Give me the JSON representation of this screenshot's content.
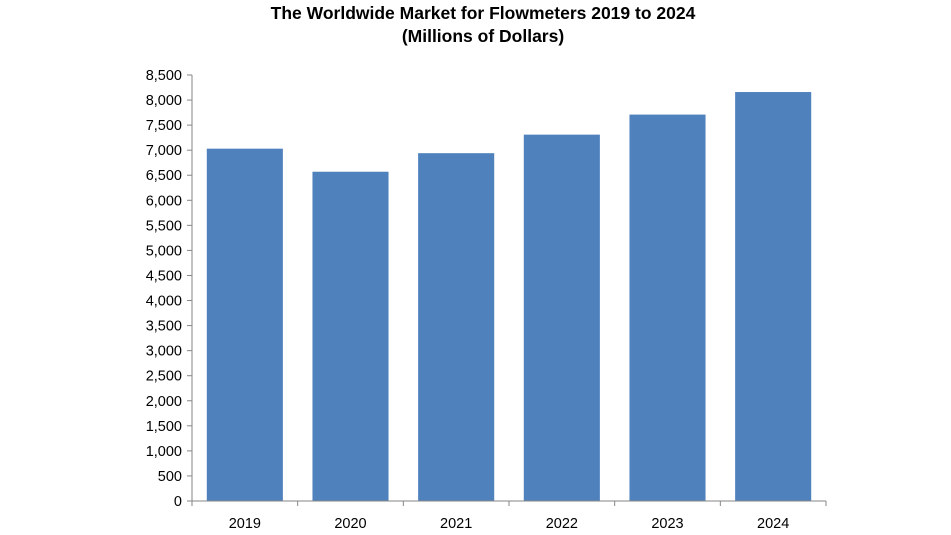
{
  "chart_data": {
    "type": "bar",
    "title": "The Worldwide Market for Flowmeters 2019 to 2024",
    "subtitle": "(Millions of Dollars)",
    "categories": [
      "2019",
      "2020",
      "2021",
      "2022",
      "2023",
      "2024"
    ],
    "values": [
      7030,
      6570,
      6940,
      7310,
      7710,
      8160
    ],
    "xlabel": "",
    "ylabel": "",
    "ylim": [
      0,
      8500
    ],
    "y_ticks": [
      0,
      500,
      1000,
      1500,
      2000,
      2500,
      3000,
      3500,
      4000,
      4500,
      5000,
      5500,
      6000,
      6500,
      7000,
      7500,
      8000,
      8500
    ],
    "y_tick_labels": [
      "0",
      "500",
      "1,000",
      "1,500",
      "2,000",
      "2,500",
      "3,000",
      "3,500",
      "4,000",
      "4,500",
      "5,000",
      "5,500",
      "6,000",
      "6,500",
      "7,000",
      "7,500",
      "8,000",
      "8,500"
    ],
    "grid": false,
    "legend": "none",
    "colors": {
      "bar": "#4f81bd",
      "axis": "#868686",
      "text": "#000000"
    }
  }
}
